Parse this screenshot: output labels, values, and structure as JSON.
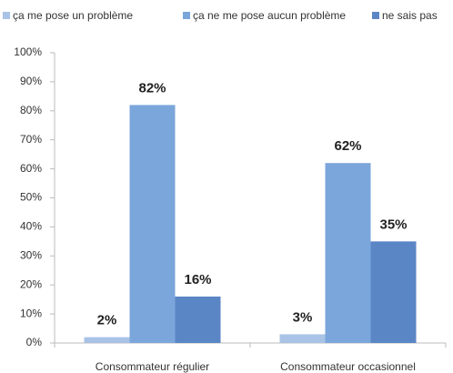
{
  "chart_data": {
    "type": "bar",
    "categories": [
      "Consommateur régulier",
      "Consommateur occasionnel"
    ],
    "series": [
      {
        "name": "ça me pose un problème",
        "color": "#a9c3e6",
        "values": [
          2,
          3
        ],
        "value_labels": [
          "2%",
          "3%"
        ]
      },
      {
        "name": "ça ne me pose aucun problème",
        "color": "#7ba6db",
        "values": [
          82,
          62
        ],
        "value_labels": [
          "82%",
          "62%"
        ]
      },
      {
        "name": "ne sais pas",
        "color": "#5b86c6",
        "values": [
          16,
          35
        ],
        "value_labels": [
          "16%",
          "35%"
        ]
      }
    ],
    "ylim": [
      0,
      100
    ],
    "yticks": [
      {
        "value": 0,
        "label": "0%"
      },
      {
        "value": 10,
        "label": "10%"
      },
      {
        "value": 20,
        "label": "20%"
      },
      {
        "value": 30,
        "label": "30%"
      },
      {
        "value": 40,
        "label": "40%"
      },
      {
        "value": 50,
        "label": "50%"
      },
      {
        "value": 60,
        "label": "60%"
      },
      {
        "value": 70,
        "label": "70%"
      },
      {
        "value": 80,
        "label": "80%"
      },
      {
        "value": 90,
        "label": "90%"
      },
      {
        "value": 100,
        "label": "100%"
      }
    ],
    "grid": false,
    "legend": "top"
  }
}
